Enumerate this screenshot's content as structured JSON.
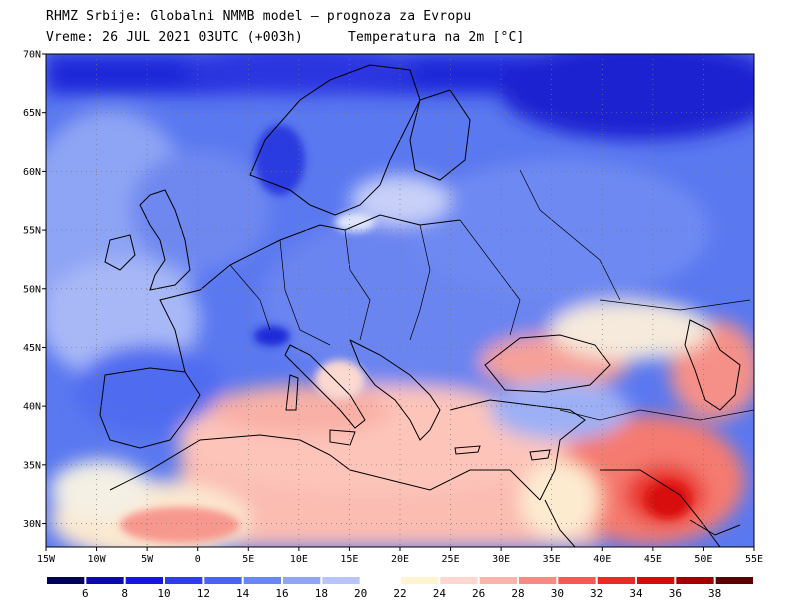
{
  "header": {
    "line1": "RHMZ Srbije: Globalni NMMB model — prognoza za Evropu",
    "line2_time": "Vreme: 26 JUL 2021 03UTC (+003h)",
    "line2_param": "Temperatura na 2m [°C]"
  },
  "map": {
    "lat_labels": [
      "70N",
      "65N",
      "60N",
      "55N",
      "50N",
      "45N",
      "40N",
      "35N",
      "30N"
    ],
    "lon_labels": [
      "15W",
      "10W",
      "5W",
      "0",
      "5E",
      "10E",
      "15E",
      "20E",
      "25E",
      "30E",
      "35E",
      "40E",
      "45E",
      "50E",
      "55E"
    ],
    "extent": {
      "lon_min": -15,
      "lon_max": 55,
      "lat_min": 28,
      "lat_max": 70
    },
    "gridlines": "dotted"
  },
  "colorbar": {
    "labels": [
      "6",
      "8",
      "10",
      "12",
      "14",
      "16",
      "18",
      "20",
      "22",
      "24",
      "26",
      "28",
      "30",
      "32",
      "34",
      "36",
      "38"
    ],
    "colors": [
      "#00005a",
      "#0a0aa8",
      "#1414e6",
      "#2e3cf0",
      "#4a64f0",
      "#6a86f2",
      "#90a6f5",
      "#b8c4f8",
      "#ffffff",
      "#fff4d0",
      "#fdd8d0",
      "#fbb4ac",
      "#f78a82",
      "#f25a52",
      "#ec2a24",
      "#d80a0a",
      "#900000"
    ]
  }
}
